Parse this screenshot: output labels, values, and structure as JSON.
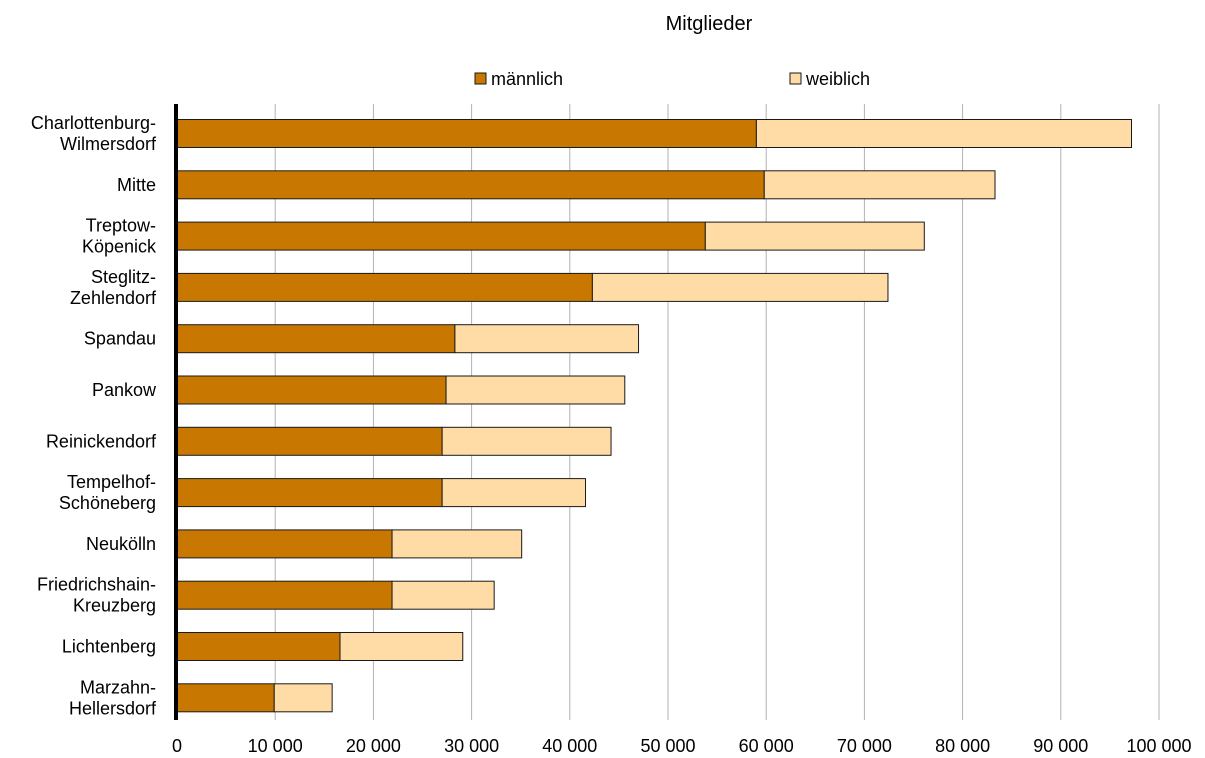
{
  "chart_data": {
    "type": "bar",
    "orientation": "horizontal",
    "stacked": true,
    "title": "Mitglieder",
    "xlabel": "",
    "ylabel": "",
    "xlim": [
      0,
      100000
    ],
    "x_ticks": [
      0,
      10000,
      20000,
      30000,
      40000,
      50000,
      60000,
      70000,
      80000,
      90000,
      100000
    ],
    "x_tick_labels": [
      "0",
      "10 000",
      "20 000",
      "30 000",
      "40 000",
      "50 000",
      "60 000",
      "70 000",
      "80 000",
      "90 000",
      "100 000"
    ],
    "grid": "vertical",
    "legend_position": "top",
    "categories": [
      "Charlottenburg-\nWilmersdorf",
      "Mitte",
      "Treptow-\nKöpenick",
      "Steglitz-\nZehlendorf",
      "Spandau",
      "Pankow",
      "Reinickendorf",
      "Tempelhof-\nSchöneberg",
      "Neukölln",
      "Friedrichshain-\nKreuzberg",
      "Lichtenberg",
      "Marzahn-\nHellersdorf"
    ],
    "series": [
      {
        "name": "männlich",
        "color": "#c87800",
        "values": [
          59000,
          59800,
          53800,
          42300,
          28300,
          27400,
          27000,
          27000,
          21900,
          21900,
          16600,
          9900
        ]
      },
      {
        "name": "weiblich",
        "color": "#ffdba6",
        "values": [
          38200,
          23500,
          22300,
          30100,
          18700,
          18200,
          17200,
          14600,
          13200,
          10400,
          12500,
          5900
        ]
      }
    ]
  }
}
